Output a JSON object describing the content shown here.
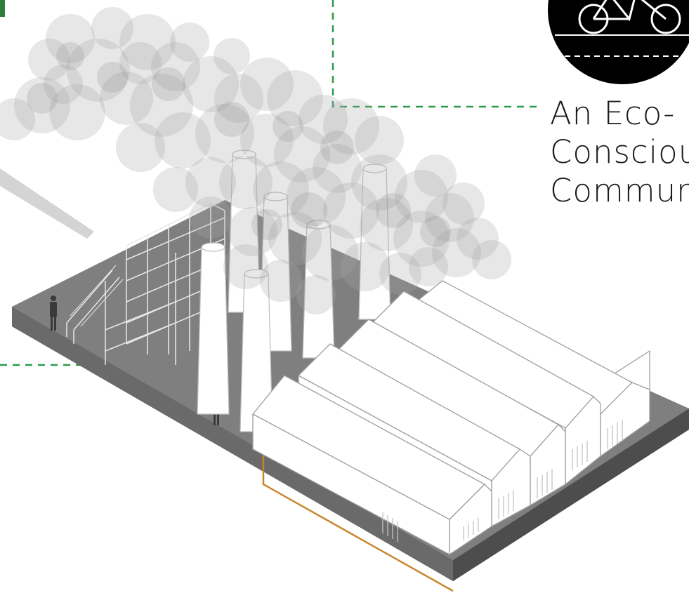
{
  "caption": {
    "line1": "An Eco-",
    "line2": "Consciou",
    "line3": "Commur"
  },
  "colors": {
    "accent_dashed_line": "#2a9a4c",
    "conduit_orange": "#c8852b",
    "ground_top": "#7f7f7f",
    "ground_side": "#5c5c5c",
    "smoke": "#b5b5b5",
    "badge_black": "#000000"
  },
  "icons": {
    "badge": "bicycle-icon"
  }
}
